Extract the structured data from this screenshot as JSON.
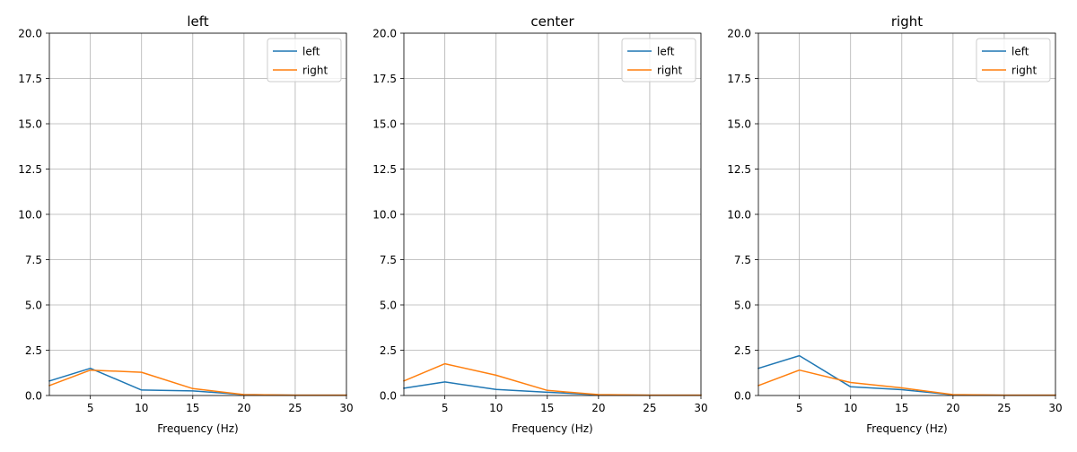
{
  "chart_data": [
    {
      "type": "line",
      "title": "left",
      "xlabel": "Frequency (Hz)",
      "ylabel": "",
      "xlim": [
        1,
        30
      ],
      "ylim": [
        0,
        20
      ],
      "xticks": [
        "5",
        "10",
        "15",
        "20",
        "25",
        "30"
      ],
      "yticks": [
        "0.0",
        "2.5",
        "5.0",
        "7.5",
        "10.0",
        "12.5",
        "15.0",
        "17.5",
        "20.0"
      ],
      "grid": true,
      "legend_position": "top-right",
      "x": [
        1,
        5,
        10,
        15,
        20,
        25,
        30
      ],
      "series": [
        {
          "name": "left",
          "color": "#1f77b4",
          "values": [
            0.8,
            1.5,
            0.3,
            0.25,
            0.05,
            0.02,
            0.02
          ]
        },
        {
          "name": "right",
          "color": "#ff7f0e",
          "values": [
            0.55,
            1.4,
            1.28,
            0.38,
            0.05,
            0.02,
            0.02
          ]
        }
      ]
    },
    {
      "type": "line",
      "title": "center",
      "xlabel": "Frequency (Hz)",
      "ylabel": "",
      "xlim": [
        1,
        30
      ],
      "ylim": [
        0,
        20
      ],
      "xticks": [
        "5",
        "10",
        "15",
        "20",
        "25",
        "30"
      ],
      "yticks": [
        "0.0",
        "2.5",
        "5.0",
        "7.5",
        "10.0",
        "12.5",
        "15.0",
        "17.5",
        "20.0"
      ],
      "grid": true,
      "legend_position": "top-right",
      "x": [
        1,
        5,
        10,
        15,
        20,
        25,
        30
      ],
      "series": [
        {
          "name": "left",
          "color": "#1f77b4",
          "values": [
            0.4,
            0.75,
            0.33,
            0.18,
            0.04,
            0.02,
            0.02
          ]
        },
        {
          "name": "right",
          "color": "#ff7f0e",
          "values": [
            0.8,
            1.75,
            1.12,
            0.28,
            0.05,
            0.02,
            0.02
          ]
        }
      ]
    },
    {
      "type": "line",
      "title": "right",
      "xlabel": "Frequency (Hz)",
      "ylabel": "",
      "xlim": [
        1,
        30
      ],
      "ylim": [
        0,
        20
      ],
      "xticks": [
        "5",
        "10",
        "15",
        "20",
        "25",
        "30"
      ],
      "yticks": [
        "0.0",
        "2.5",
        "5.0",
        "7.5",
        "10.0",
        "12.5",
        "15.0",
        "17.5",
        "20.0"
      ],
      "grid": true,
      "legend_position": "top-right",
      "x": [
        1,
        5,
        10,
        15,
        20,
        25,
        30
      ],
      "series": [
        {
          "name": "left",
          "color": "#1f77b4",
          "values": [
            1.5,
            2.2,
            0.48,
            0.32,
            0.04,
            0.02,
            0.02
          ]
        },
        {
          "name": "right",
          "color": "#ff7f0e",
          "values": [
            0.55,
            1.4,
            0.72,
            0.42,
            0.05,
            0.02,
            0.02
          ]
        }
      ]
    }
  ]
}
